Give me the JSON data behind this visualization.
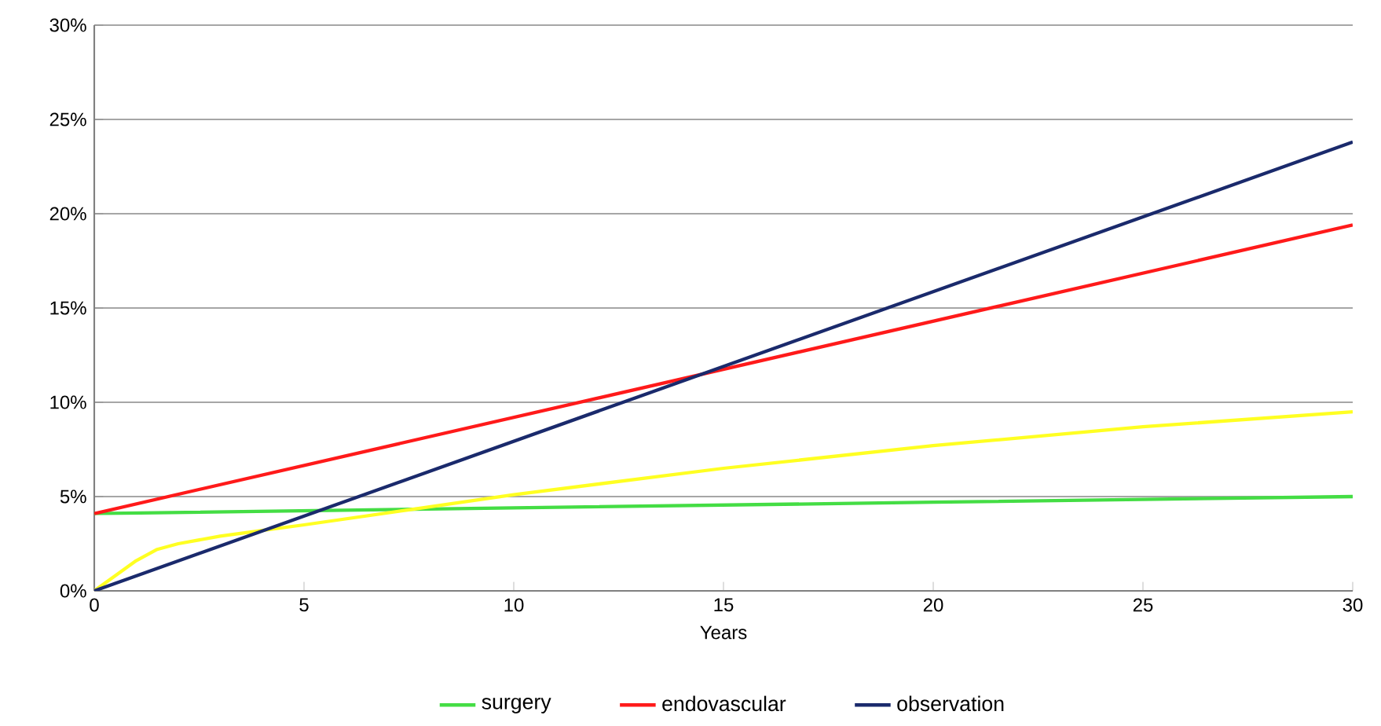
{
  "chart_data": {
    "type": "line",
    "xlabel": "Years",
    "xlim": [
      0,
      30
    ],
    "xticks": [
      0,
      5,
      10,
      15,
      20,
      25,
      30
    ],
    "ylim": [
      0,
      30
    ],
    "yticks": [
      {
        "value": 0,
        "label": "0%"
      },
      {
        "value": 5,
        "label": "5%"
      },
      {
        "value": 10,
        "label": "10%"
      },
      {
        "value": 15,
        "label": "15%"
      },
      {
        "value": 20,
        "label": "20%"
      },
      {
        "value": 25,
        "label": "25%"
      },
      {
        "value": 30,
        "label": "30%"
      }
    ],
    "grid": "y",
    "legend": "bottom",
    "marker": "none",
    "line_style": "solid",
    "series": [
      {
        "name": "surgery",
        "color": "#44dd44",
        "x": [
          0,
          10,
          20,
          30
        ],
        "values": [
          4.1,
          4.4,
          4.7,
          5.0
        ]
      },
      {
        "name": "endovascular",
        "color": "#ff1a1a",
        "x": [
          0,
          30
        ],
        "values": [
          4.1,
          19.4
        ]
      },
      {
        "color": "#ffff22",
        "x": [
          0,
          0.5,
          1,
          1.5,
          2,
          3,
          4,
          5,
          7.5,
          10,
          15,
          20,
          25,
          30
        ],
        "values": [
          0,
          0.8,
          1.6,
          2.2,
          2.5,
          2.9,
          3.2,
          3.5,
          4.3,
          5.1,
          6.5,
          7.7,
          8.7,
          9.5
        ]
      },
      {
        "name": "observation",
        "color": "#1a2a6c",
        "x": [
          0,
          30
        ],
        "values": [
          0,
          23.8
        ]
      }
    ]
  }
}
